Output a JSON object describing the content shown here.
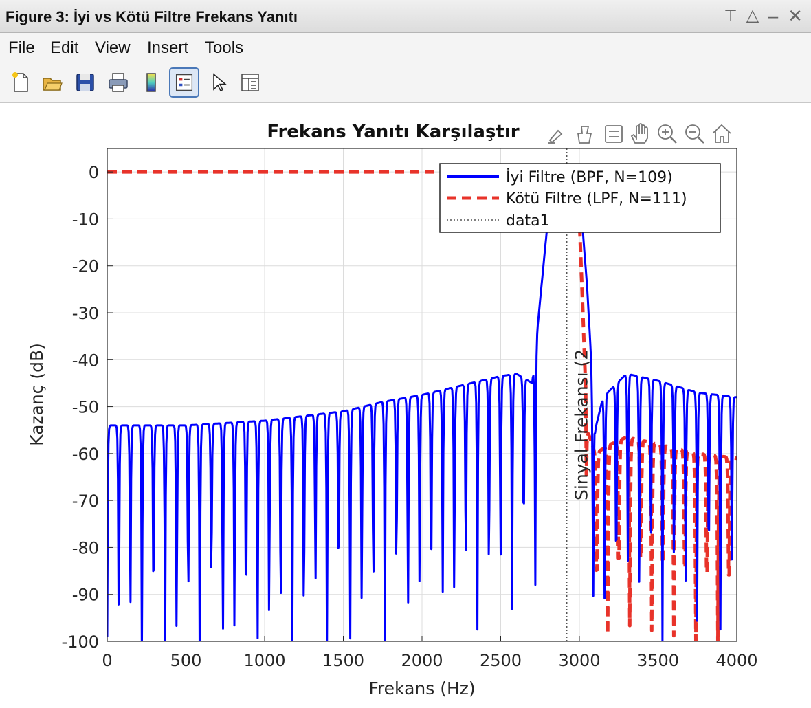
{
  "window": {
    "title": "Figure 3: İyi vs Kötü Filtre Frekans Yanıtı",
    "controls": [
      "pin-icon",
      "undock-icon",
      "minimize-icon",
      "close-icon"
    ]
  },
  "menu": {
    "items": [
      "File",
      "Edit",
      "View",
      "Insert",
      "Tools"
    ]
  },
  "toolbar": {
    "buttons": [
      "new-figure-icon",
      "open-file-icon",
      "save-icon",
      "print-icon",
      "colorbar-icon",
      "legend-icon",
      "pointer-icon",
      "property-inspector-icon"
    ],
    "active": "legend-icon"
  },
  "axes_toolbar": {
    "buttons": [
      "brush-icon",
      "data-tips-icon",
      "link-icon",
      "pan-icon",
      "zoom-in-icon",
      "zoom-out-icon",
      "home-icon"
    ]
  },
  "chart_data": {
    "type": "line",
    "title": "Frekans Yanıtı Karşılaştır",
    "xlabel": "Frekans (Hz)",
    "ylabel": "Kazanç (dB)",
    "xlim": [
      0,
      4000
    ],
    "ylim": [
      -100,
      5
    ],
    "xticks": [
      0,
      500,
      1000,
      1500,
      2000,
      2500,
      3000,
      3500,
      4000
    ],
    "yticks": [
      0,
      -10,
      -20,
      -30,
      -40,
      -50,
      -60,
      -70,
      -80,
      -90,
      -100
    ],
    "grid": true,
    "legend_position": "top-right",
    "series": [
      {
        "name": "İyi Filtre (BPF, N=109)",
        "style": "solid",
        "color": "#0000ff",
        "passband": [
          2800,
          3050
        ],
        "x": [
          0,
          250,
          500,
          750,
          1000,
          1250,
          1500,
          1750,
          2000,
          2250,
          2500,
          2600,
          2700,
          2800,
          2850,
          2900,
          2950,
          3000,
          3050,
          3100,
          3150,
          3300,
          3500,
          3750,
          4000
        ],
        "y": [
          -54,
          -54,
          -54,
          -53.5,
          -53,
          -52,
          -51,
          -49,
          -47.5,
          -45.5,
          -43.5,
          -43,
          -45,
          -10,
          0,
          0,
          0,
          -3,
          -25,
          -55,
          -48,
          -43,
          -44.5,
          -47,
          -48
        ]
      },
      {
        "name": "Kötü Filtre (LPF, N=111)",
        "style": "dashed",
        "color": "#e8332a",
        "x": [
          0,
          1000,
          2000,
          2900,
          3000,
          3050,
          3100,
          3200,
          3300,
          3500,
          3750,
          4000
        ],
        "y": [
          0,
          0,
          0,
          0,
          -10,
          -55,
          -60,
          -58,
          -56.5,
          -58,
          -60,
          -61
        ]
      },
      {
        "name": "data1",
        "style": "dotted",
        "color": "#555555",
        "x": [
          2920,
          2920
        ],
        "y": [
          -100,
          5
        ]
      }
    ],
    "annotations": [
      {
        "text": "Sinyal Frekansı (2",
        "x": 2920,
        "orientation": "vertical"
      }
    ]
  }
}
